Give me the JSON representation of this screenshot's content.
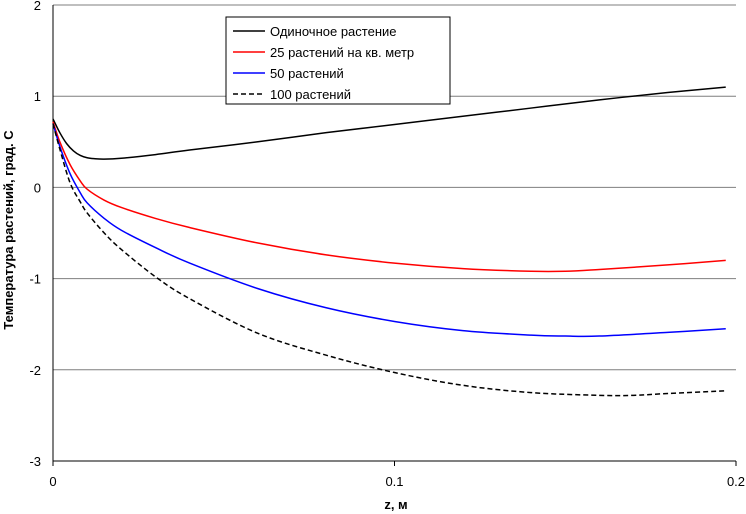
{
  "chart_data": {
    "type": "line",
    "title": "",
    "xlabel": "z, м",
    "ylabel": "Температура растений, град. С",
    "xlim": [
      0,
      0.2
    ],
    "ylim": [
      -3,
      2
    ],
    "x_ticks": [
      "0",
      "0.1",
      "0.2"
    ],
    "y_ticks": [
      "2",
      "1",
      "0",
      "-1",
      "-2",
      "-3"
    ],
    "grid": "horizontal",
    "legend_position": "top-center",
    "series": [
      {
        "name": "Одиночное растение",
        "color": "#000000",
        "dash": "solid",
        "x": [
          0,
          0.002,
          0.004,
          0.006,
          0.008,
          0.01,
          0.012,
          0.015,
          0.02,
          0.03,
          0.04,
          0.06,
          0.08,
          0.1,
          0.12,
          0.14,
          0.16,
          0.18,
          0.197
        ],
        "y": [
          0.75,
          0.6,
          0.48,
          0.4,
          0.35,
          0.325,
          0.315,
          0.31,
          0.32,
          0.36,
          0.41,
          0.5,
          0.6,
          0.69,
          0.78,
          0.87,
          0.96,
          1.04,
          1.1
        ]
      },
      {
        "name": "25 растений на кв. метр",
        "color": "#ff0000",
        "dash": "solid",
        "x": [
          0,
          0.002,
          0.005,
          0.008,
          0.01,
          0.015,
          0.02,
          0.03,
          0.04,
          0.06,
          0.08,
          0.1,
          0.12,
          0.14,
          0.15,
          0.16,
          0.18,
          0.197
        ],
        "y": [
          0.72,
          0.5,
          0.25,
          0.07,
          -0.02,
          -0.14,
          -0.22,
          -0.34,
          -0.44,
          -0.61,
          -0.74,
          -0.83,
          -0.89,
          -0.92,
          -0.92,
          -0.9,
          -0.85,
          -0.8
        ]
      },
      {
        "name": "50 растений",
        "color": "#0000ff",
        "dash": "solid",
        "x": [
          0,
          0.002,
          0.005,
          0.008,
          0.01,
          0.015,
          0.02,
          0.03,
          0.04,
          0.06,
          0.08,
          0.1,
          0.12,
          0.14,
          0.15,
          0.16,
          0.18,
          0.197
        ],
        "y": [
          0.7,
          0.45,
          0.15,
          -0.06,
          -0.17,
          -0.34,
          -0.47,
          -0.66,
          -0.83,
          -1.11,
          -1.32,
          -1.47,
          -1.57,
          -1.62,
          -1.63,
          -1.63,
          -1.59,
          -1.55
        ]
      },
      {
        "name": "100 растений",
        "color": "#000000",
        "dash": "dashed",
        "x": [
          0,
          0.002,
          0.005,
          0.008,
          0.01,
          0.015,
          0.02,
          0.03,
          0.04,
          0.06,
          0.08,
          0.1,
          0.12,
          0.14,
          0.16,
          0.17,
          0.18,
          0.197
        ],
        "y": [
          0.7,
          0.42,
          0.05,
          -0.16,
          -0.28,
          -0.5,
          -0.68,
          -0.98,
          -1.22,
          -1.6,
          -1.84,
          -2.03,
          -2.17,
          -2.25,
          -2.28,
          -2.28,
          -2.26,
          -2.23
        ]
      }
    ]
  }
}
